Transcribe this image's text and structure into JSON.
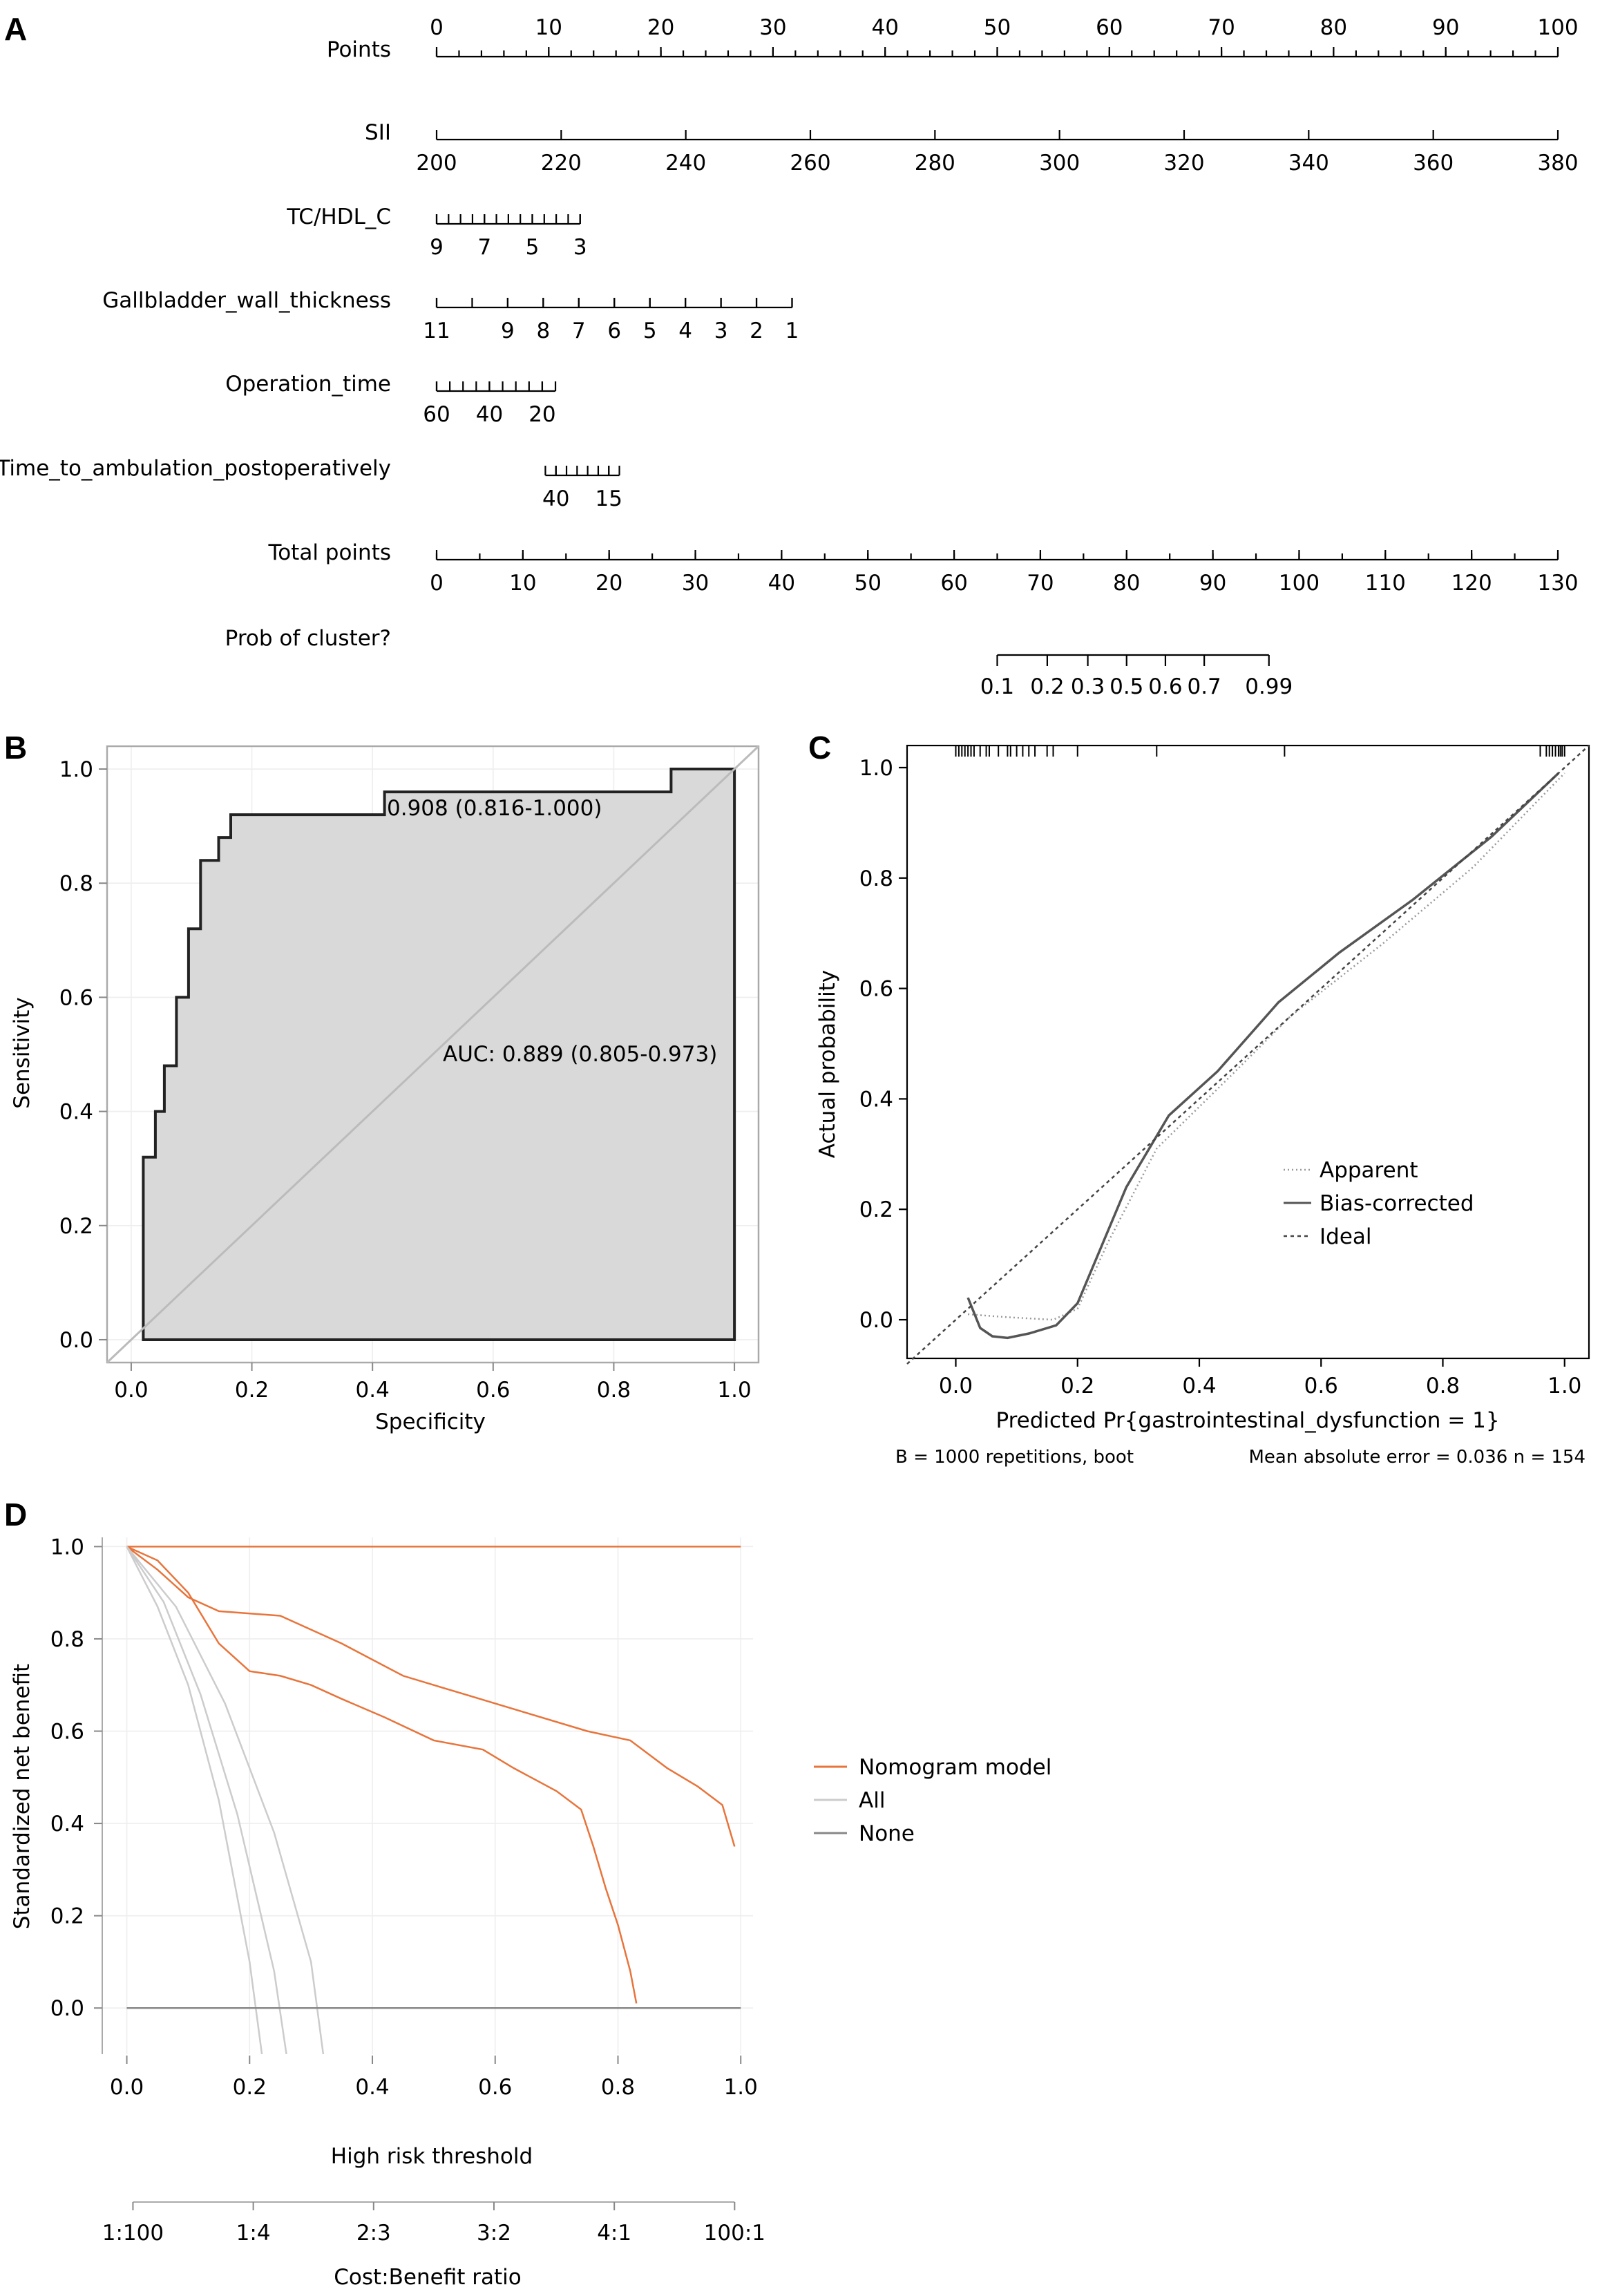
{
  "panels": {
    "a": "A",
    "b": "B",
    "c": "C",
    "d": "D"
  },
  "chart_data": [
    {
      "type": "nomogram",
      "rows": [
        {
          "label": "Points",
          "min": 0,
          "max": 100,
          "labels_above": true,
          "ticks": [
            0,
            10,
            20,
            30,
            40,
            50,
            60,
            70,
            80,
            90,
            100
          ],
          "minor": 2
        },
        {
          "label": "SII",
          "min": 200,
          "max": 380,
          "ticks": [
            200,
            220,
            240,
            260,
            280,
            300,
            320,
            340,
            360,
            380
          ],
          "minor": 0
        },
        {
          "label": "TC/HDL_C",
          "points_at": [
            [
              9,
              0
            ],
            [
              3,
              12.8
            ]
          ],
          "ticks": [
            9,
            7,
            5,
            3
          ],
          "minor_ticks": [
            9,
            8.5,
            8,
            7.5,
            7,
            6.5,
            6,
            5.5,
            5,
            4.5,
            4,
            3.5,
            3
          ]
        },
        {
          "label": "Gallbladder_wall_thickness",
          "points_at": [
            [
              11,
              0
            ],
            [
              1,
              31.7
            ]
          ],
          "ticks": [
            11,
            9,
            8,
            7,
            6,
            5,
            4,
            3,
            2,
            1
          ],
          "minor_ticks": [
            11,
            10,
            9,
            8,
            7,
            6,
            5,
            4,
            3,
            2,
            1
          ]
        },
        {
          "label": "Operation_time",
          "points_at": [
            [
              60,
              0
            ],
            [
              15,
              10.6
            ]
          ],
          "ticks": [
            60,
            40,
            20
          ],
          "minor_ticks": [
            60,
            55,
            50,
            45,
            40,
            35,
            30,
            25,
            20,
            15
          ]
        },
        {
          "label": "Time_to_ambulation_postoperatively",
          "points_at": [
            [
              45,
              9.7
            ],
            [
              10,
              16.3
            ]
          ],
          "ticks": [
            40,
            15
          ],
          "minor_ticks": [
            45,
            40,
            35,
            30,
            25,
            20,
            15,
            10
          ]
        },
        {
          "label": "Total points",
          "min": 0,
          "max": 130,
          "ticks": [
            0,
            10,
            20,
            30,
            40,
            50,
            60,
            70,
            80,
            90,
            100,
            110,
            120,
            130
          ],
          "minor": 1
        },
        {
          "label": "Prob of cluster?",
          "ticks": [
            0.1,
            0.2,
            0.3,
            0.5,
            0.6,
            0.7,
            0.99
          ],
          "tick_labels": [
            "0.1",
            "0.2",
            "0.3",
            "0.5",
            "0.6",
            "0.7",
            "0.99"
          ],
          "total_points_at": [
            65,
            70.8,
            75.5,
            80,
            84.5,
            89,
            96.5
          ]
        }
      ]
    },
    {
      "type": "line",
      "xlabel": "Specificity",
      "ylabel": "Sensitivity",
      "xlim": [
        0,
        1
      ],
      "ylim": [
        0,
        1
      ],
      "xticks": [
        0.0,
        0.2,
        0.4,
        0.6,
        0.8,
        1.0
      ],
      "yticks": [
        0.0,
        0.2,
        0.4,
        0.6,
        0.8,
        1.0
      ],
      "grid": true,
      "annotations": [
        "0.908 (0.816-1.000)",
        "AUC: 0.889 (0.805-0.973)"
      ],
      "roc_curve": [
        [
          0.02,
          0.0
        ],
        [
          0.02,
          0.32
        ],
        [
          0.04,
          0.32
        ],
        [
          0.04,
          0.4
        ],
        [
          0.055,
          0.4
        ],
        [
          0.055,
          0.48
        ],
        [
          0.075,
          0.48
        ],
        [
          0.075,
          0.6
        ],
        [
          0.095,
          0.6
        ],
        [
          0.095,
          0.72
        ],
        [
          0.115,
          0.72
        ],
        [
          0.115,
          0.84
        ],
        [
          0.145,
          0.84
        ],
        [
          0.145,
          0.88
        ],
        [
          0.165,
          0.88
        ],
        [
          0.165,
          0.92
        ],
        [
          0.42,
          0.92
        ],
        [
          0.42,
          0.96
        ],
        [
          0.895,
          0.96
        ],
        [
          0.895,
          1.0
        ],
        [
          1.0,
          1.0
        ],
        [
          1.0,
          0.0
        ]
      ],
      "diagonal": [
        [
          -0.04,
          -0.04
        ],
        [
          1.04,
          1.04
        ]
      ]
    },
    {
      "type": "line",
      "xlabel": "Predicted Pr{gastrointestinal_dysfunction = 1}",
      "ylabel": "Actual probability",
      "xlim": [
        -0.08,
        1.04
      ],
      "ylim": [
        -0.07,
        1.04
      ],
      "xticks": [
        0.0,
        0.2,
        0.4,
        0.6,
        0.8,
        1.0
      ],
      "yticks": [
        0.0,
        0.2,
        0.4,
        0.6,
        0.8,
        1.0
      ],
      "legend": [
        "Apparent",
        "Bias-corrected",
        "Ideal"
      ],
      "legend_position": "center-right",
      "footnote_left": "B = 1000 repetitions, boot",
      "footnote_right": "Mean absolute error = 0.036 n = 154",
      "series": [
        {
          "name": "Apparent",
          "style": "dotted",
          "points": [
            [
              0.02,
              0.01
            ],
            [
              0.08,
              0.005
            ],
            [
              0.16,
              0.0
            ],
            [
              0.2,
              0.02
            ],
            [
              0.25,
              0.14
            ],
            [
              0.33,
              0.31
            ],
            [
              0.45,
              0.44
            ],
            [
              0.55,
              0.55
            ],
            [
              0.7,
              0.68
            ],
            [
              0.85,
              0.82
            ],
            [
              1.0,
              0.99
            ]
          ]
        },
        {
          "name": "Bias-corrected",
          "style": "solid",
          "points": [
            [
              0.02,
              0.04
            ],
            [
              0.04,
              -0.015
            ],
            [
              0.06,
              -0.03
            ],
            [
              0.085,
              -0.033
            ],
            [
              0.12,
              -0.025
            ],
            [
              0.165,
              -0.01
            ],
            [
              0.2,
              0.03
            ],
            [
              0.28,
              0.24
            ],
            [
              0.35,
              0.37
            ],
            [
              0.43,
              0.45
            ],
            [
              0.53,
              0.575
            ],
            [
              0.63,
              0.665
            ],
            [
              0.75,
              0.76
            ],
            [
              0.88,
              0.875
            ],
            [
              0.99,
              0.99
            ]
          ]
        },
        {
          "name": "Ideal",
          "style": "dashed",
          "points": [
            [
              -0.08,
              -0.08
            ],
            [
              1.04,
              1.04
            ]
          ]
        }
      ],
      "rug_top": [
        0.0,
        0.005,
        0.01,
        0.015,
        0.02,
        0.025,
        0.03,
        0.04,
        0.05,
        0.055,
        0.07,
        0.085,
        0.09,
        0.1,
        0.11,
        0.12,
        0.13,
        0.15,
        0.16,
        0.2,
        0.33,
        0.54,
        0.96,
        0.97,
        0.975,
        0.98,
        0.985,
        0.99,
        0.993,
        0.996,
        1.0
      ]
    },
    {
      "type": "line",
      "xlabel": "High risk threshold",
      "ylabel": "Standardized net benefit",
      "xlim": [
        -0.04,
        1.02
      ],
      "ylim": [
        -0.1,
        1.02
      ],
      "xticks": [
        0.0,
        0.2,
        0.4,
        0.6,
        0.8,
        1.0
      ],
      "yticks": [
        0.0,
        0.2,
        0.4,
        0.6,
        0.8,
        1.0
      ],
      "secondary_xlabel": "Cost:Benefit ratio",
      "secondary_xticks": [
        "1:100",
        "1:4",
        "2:3",
        "3:2",
        "4:1",
        "100:1"
      ],
      "grid": true,
      "legend": [
        "Nomogram model",
        "All",
        "None"
      ],
      "series": [
        {
          "name": "Nomogram model",
          "color": "#e8743b",
          "points": [
            [
              0.0,
              1.0
            ],
            [
              0.05,
              0.97
            ],
            [
              0.1,
              0.9
            ],
            [
              0.15,
              0.79
            ],
            [
              0.2,
              0.73
            ],
            [
              0.25,
              0.72
            ],
            [
              0.3,
              0.7
            ],
            [
              0.35,
              0.67
            ],
            [
              0.42,
              0.63
            ],
            [
              0.5,
              0.58
            ],
            [
              0.58,
              0.56
            ],
            [
              0.63,
              0.52
            ],
            [
              0.7,
              0.47
            ],
            [
              0.74,
              0.43
            ],
            [
              0.76,
              0.35
            ],
            [
              0.78,
              0.26
            ],
            [
              0.8,
              0.18
            ],
            [
              0.82,
              0.08
            ],
            [
              0.83,
              0.01
            ]
          ]
        },
        {
          "name": "Nomogram model",
          "color": "#e8743b",
          "points": [
            [
              0.0,
              1.0
            ],
            [
              0.05,
              0.95
            ],
            [
              0.1,
              0.89
            ],
            [
              0.15,
              0.86
            ],
            [
              0.25,
              0.85
            ],
            [
              0.35,
              0.79
            ],
            [
              0.45,
              0.72
            ],
            [
              0.55,
              0.68
            ],
            [
              0.65,
              0.64
            ],
            [
              0.75,
              0.6
            ],
            [
              0.82,
              0.58
            ],
            [
              0.88,
              0.52
            ],
            [
              0.93,
              0.48
            ],
            [
              0.97,
              0.44
            ],
            [
              0.99,
              0.35
            ]
          ]
        },
        {
          "name": "Nomogram model",
          "color": "#e8743b",
          "points": [
            [
              0.0,
              1.0
            ],
            [
              1.0,
              1.0
            ]
          ]
        },
        {
          "name": "All",
          "color": "#cccccc",
          "points": [
            [
              0.0,
              1.0
            ],
            [
              0.05,
              0.87
            ],
            [
              0.1,
              0.7
            ],
            [
              0.15,
              0.45
            ],
            [
              0.2,
              0.1
            ],
            [
              0.22,
              -0.1
            ]
          ]
        },
        {
          "name": "All",
          "color": "#cccccc",
          "points": [
            [
              0.0,
              1.0
            ],
            [
              0.06,
              0.88
            ],
            [
              0.12,
              0.68
            ],
            [
              0.18,
              0.42
            ],
            [
              0.24,
              0.08
            ],
            [
              0.26,
              -0.1
            ]
          ]
        },
        {
          "name": "All",
          "color": "#cccccc",
          "points": [
            [
              0.0,
              1.0
            ],
            [
              0.08,
              0.87
            ],
            [
              0.16,
              0.66
            ],
            [
              0.24,
              0.38
            ],
            [
              0.3,
              0.1
            ],
            [
              0.32,
              -0.1
            ]
          ]
        },
        {
          "name": "None",
          "color": "#888888",
          "points": [
            [
              0.0,
              0.0
            ],
            [
              1.0,
              0.0
            ]
          ]
        }
      ]
    }
  ]
}
